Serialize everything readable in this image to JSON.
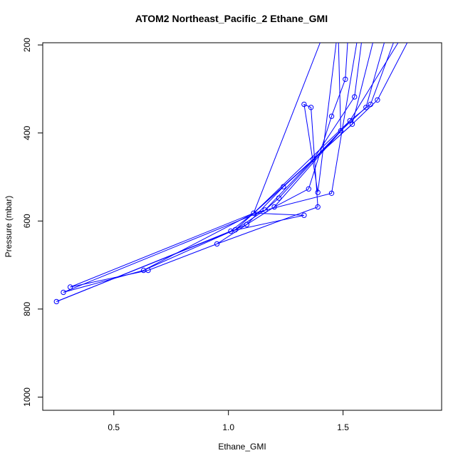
{
  "chart_data": {
    "type": "line",
    "title": "ATOM2 Northeast_Pacific_2 Ethane_GMI",
    "xlabel": "Ethane_GMI",
    "ylabel": "Pressure (mbar)",
    "xlim": [
      0.19,
      1.93
    ],
    "ylim": [
      1030,
      195
    ],
    "y_reversed": true,
    "x_ticks": [
      0.5,
      1.0,
      1.5
    ],
    "x_tick_labels": [
      "0.5",
      "1.0",
      "1.5"
    ],
    "y_ticks": [
      200,
      400,
      600,
      800,
      1000
    ],
    "y_tick_labels": [
      "200",
      "400",
      "600",
      "800",
      "1000"
    ],
    "series_color": "#0000ff",
    "grid": false,
    "legend": "none",
    "points": [
      {
        "x": 1.33,
        "y": 335
      },
      {
        "x": 1.36,
        "y": 342
      },
      {
        "x": 1.45,
        "y": 362
      },
      {
        "x": 1.49,
        "y": 395
      },
      {
        "x": 1.51,
        "y": 278
      },
      {
        "x": 1.55,
        "y": 318
      },
      {
        "x": 1.6,
        "y": 342
      },
      {
        "x": 1.62,
        "y": 335
      },
      {
        "x": 1.65,
        "y": 325
      },
      {
        "x": 1.53,
        "y": 372
      },
      {
        "x": 1.54,
        "y": 380
      },
      {
        "x": 1.37,
        "y": 460
      },
      {
        "x": 1.24,
        "y": 522
      },
      {
        "x": 1.22,
        "y": 548
      },
      {
        "x": 1.35,
        "y": 527
      },
      {
        "x": 1.39,
        "y": 535
      },
      {
        "x": 1.45,
        "y": 537
      },
      {
        "x": 1.39,
        "y": 568
      },
      {
        "x": 1.33,
        "y": 587
      },
      {
        "x": 1.2,
        "y": 568
      },
      {
        "x": 1.16,
        "y": 575
      },
      {
        "x": 1.11,
        "y": 582
      },
      {
        "x": 1.08,
        "y": 608
      },
      {
        "x": 1.03,
        "y": 620
      },
      {
        "x": 1.01,
        "y": 623
      },
      {
        "x": 0.95,
        "y": 652
      },
      {
        "x": 0.65,
        "y": 712
      },
      {
        "x": 0.63,
        "y": 712
      },
      {
        "x": 0.31,
        "y": 750
      },
      {
        "x": 0.28,
        "y": 762
      },
      {
        "x": 0.25,
        "y": 783
      }
    ],
    "profiles": [
      [
        [
          1.78,
          195
        ],
        [
          1.65,
          325
        ],
        [
          1.54,
          380
        ],
        [
          1.24,
          522
        ],
        [
          1.08,
          608
        ],
        [
          0.95,
          652
        ],
        [
          0.65,
          712
        ],
        [
          0.31,
          750
        ]
      ],
      [
        [
          1.72,
          195
        ],
        [
          1.62,
          335
        ],
        [
          1.53,
          372
        ],
        [
          1.11,
          582
        ],
        [
          0.63,
          712
        ],
        [
          0.28,
          762
        ]
      ],
      [
        [
          1.68,
          195
        ],
        [
          1.6,
          342
        ],
        [
          1.49,
          395
        ],
        [
          1.22,
          548
        ],
        [
          1.16,
          575
        ],
        [
          1.03,
          620
        ],
        [
          0.25,
          783
        ]
      ],
      [
        [
          1.58,
          195
        ],
        [
          1.55,
          318
        ],
        [
          1.37,
          460
        ],
        [
          1.11,
          582
        ],
        [
          1.01,
          623
        ],
        [
          0.25,
          783
        ]
      ],
      [
        [
          1.52,
          195
        ],
        [
          1.51,
          278
        ],
        [
          1.45,
          362
        ],
        [
          1.35,
          527
        ],
        [
          1.2,
          568
        ],
        [
          1.08,
          608
        ],
        [
          0.63,
          712
        ]
      ],
      [
        [
          1.47,
          195
        ],
        [
          1.39,
          535
        ],
        [
          1.33,
          335
        ],
        [
          1.36,
          342
        ],
        [
          1.39,
          568
        ],
        [
          0.95,
          652
        ]
      ],
      [
        [
          1.4,
          195
        ],
        [
          1.11,
          582
        ],
        [
          1.33,
          587
        ],
        [
          1.01,
          623
        ]
      ],
      [
        [
          1.56,
          195
        ],
        [
          1.45,
          537
        ],
        [
          1.11,
          582
        ],
        [
          0.31,
          750
        ]
      ],
      [
        [
          1.48,
          195
        ],
        [
          1.49,
          395
        ],
        [
          1.16,
          575
        ],
        [
          0.28,
          762
        ]
      ],
      [
        [
          1.63,
          195
        ],
        [
          1.54,
          380
        ],
        [
          1.03,
          620
        ]
      ],
      [
        [
          1.74,
          195
        ],
        [
          1.53,
          372
        ],
        [
          1.2,
          568
        ]
      ]
    ]
  }
}
